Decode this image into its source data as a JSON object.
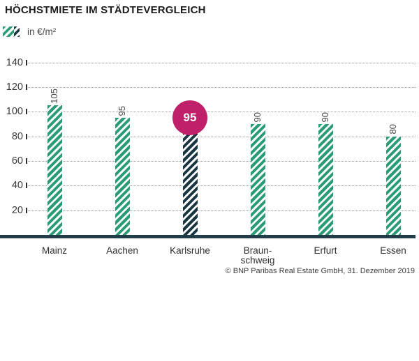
{
  "header": {
    "title": "HÖCHSTMIETE IM STÄDTEVERGLEICH"
  },
  "legend": {
    "label": "in €/m²"
  },
  "footer": {
    "source": "© BNP Paribas Real Estate GmbH, 31. Dezember 2019"
  },
  "chart_data": {
    "type": "bar",
    "title": "HÖCHSTMIETE IM STÄDTEVERGLEICH",
    "legend_label": "in €/m²",
    "unit": "€/m²",
    "categories": [
      "Mainz",
      "Aachen",
      "Karlsruhe",
      "Braun-\nschweig",
      "Erfurt",
      "Essen"
    ],
    "values": [
      105,
      95,
      95,
      90,
      90,
      80
    ],
    "highlight_index": 2,
    "highlight_label": "95",
    "y_ticks": [
      20,
      40,
      60,
      80,
      100,
      120,
      140
    ],
    "ylim": [
      0,
      150
    ],
    "grid": "horizontal-dotted",
    "legend_position": "top-left",
    "colors": {
      "bar_stripes": "#2a9c74",
      "highlight_bar_stripes": "#1a3642",
      "highlight_circle": "#c01f6a",
      "axis_line": "#223d47",
      "gridline": "#9b9b9b"
    },
    "source": "© BNP Paribas Real Estate GmbH, 31. Dezember 2019"
  }
}
